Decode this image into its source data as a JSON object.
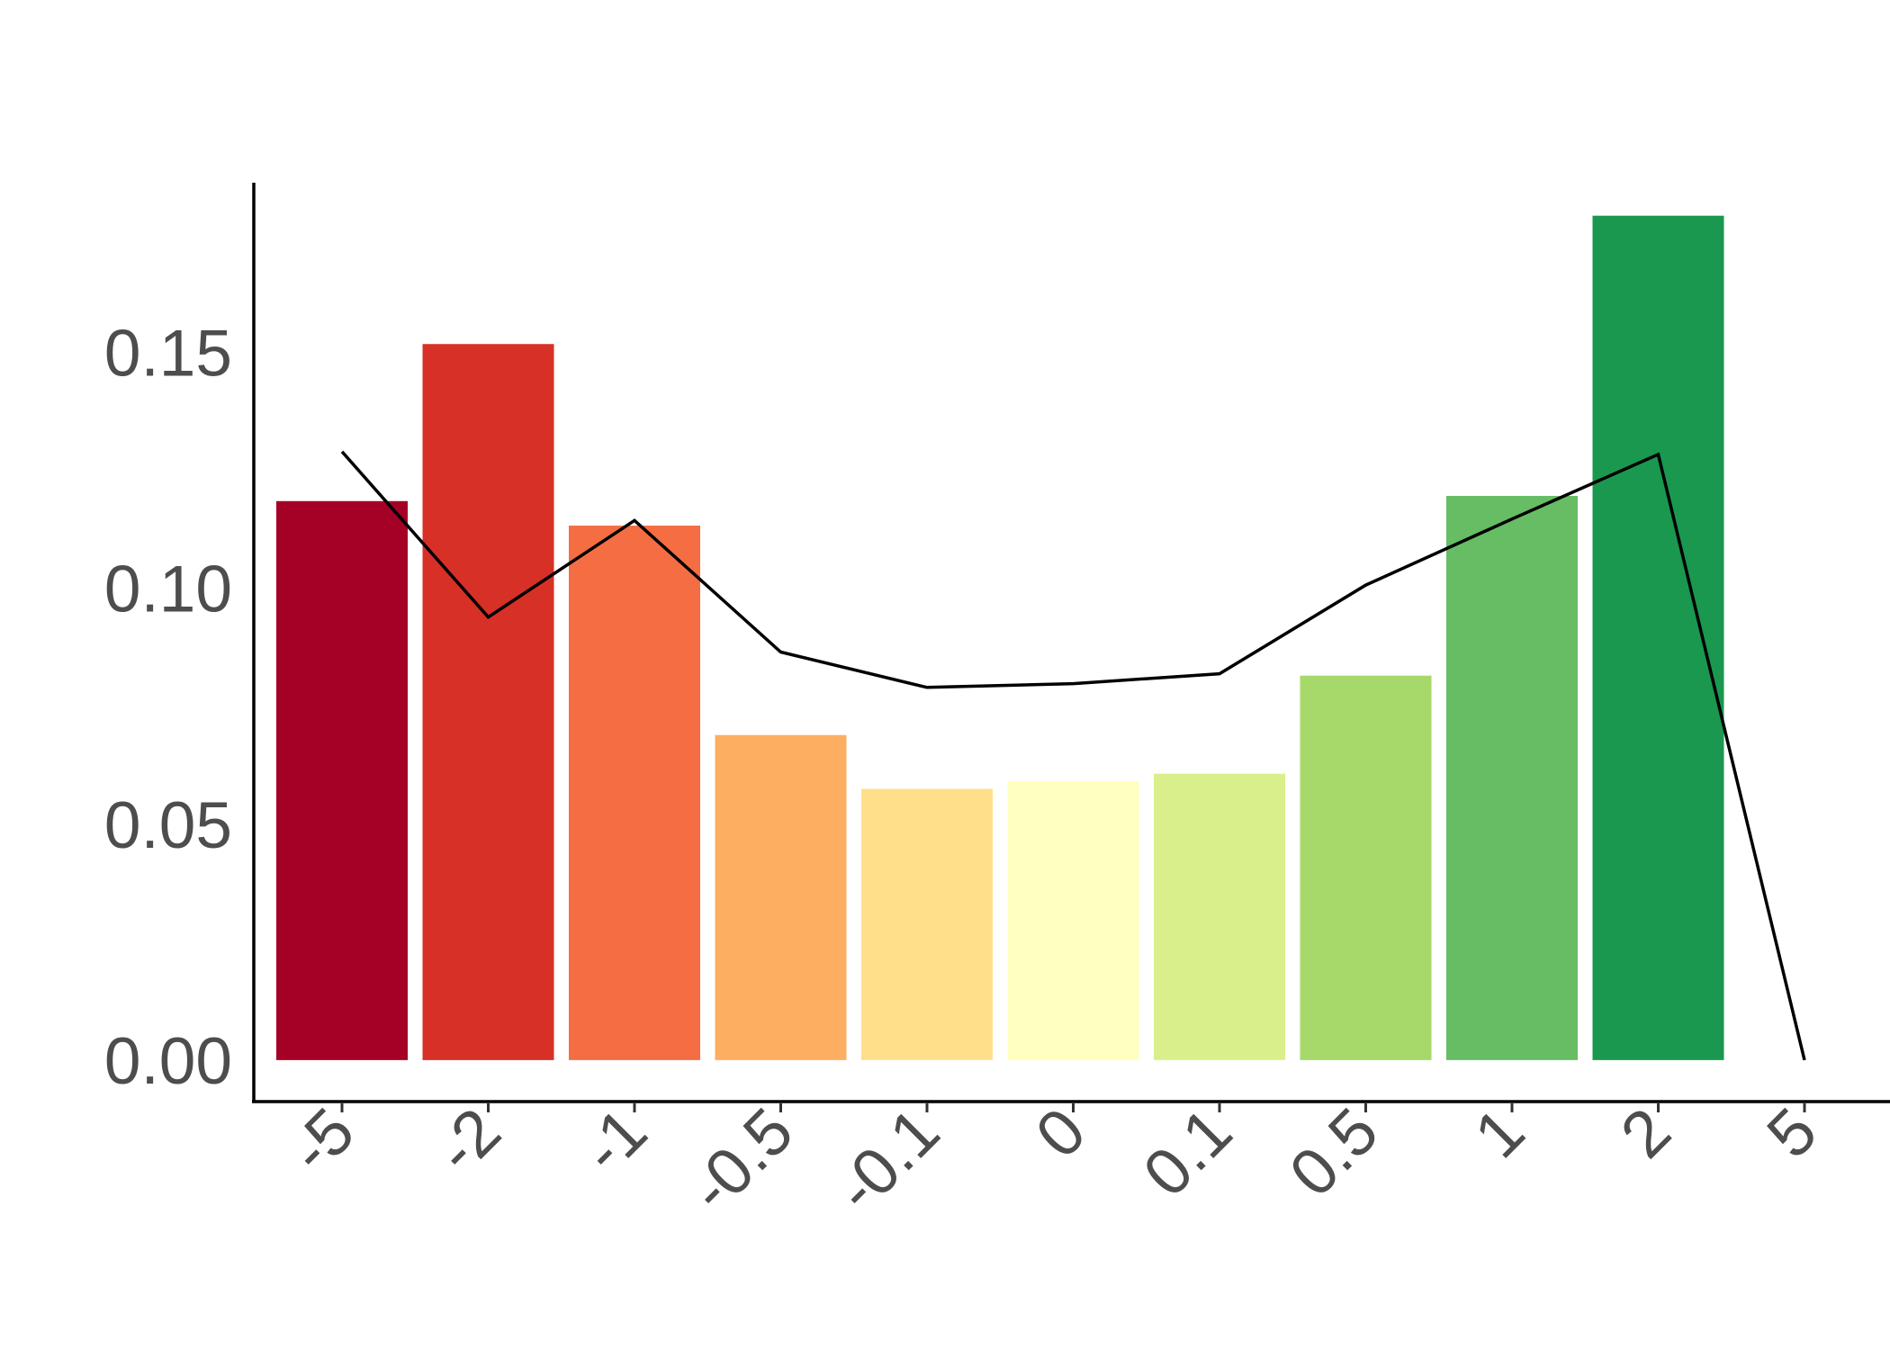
{
  "chart_data": {
    "type": "bar",
    "title": "",
    "xlabel": "",
    "ylabel": "",
    "x_ticks": [
      "-5",
      "-2",
      "-1",
      "-0.5",
      "-0.1",
      "0",
      "0.1",
      "0.5",
      "1",
      "2",
      "5"
    ],
    "y_ticks": [
      "0.00",
      "0.05",
      "0.10",
      "0.15"
    ],
    "ylim": [
      -0.0088,
      0.186
    ],
    "bars": {
      "categories": [
        "-5",
        "-2",
        "-1",
        "-0.5",
        "-0.1",
        "0",
        "0.1",
        "0.5",
        "1",
        "2"
      ],
      "values": [
        0.1185,
        0.1518,
        0.1133,
        0.0689,
        0.0575,
        0.0591,
        0.0607,
        0.0815,
        0.1196,
        0.179
      ],
      "colors": [
        "#a50026",
        "#d73027",
        "#f46d43",
        "#fdae61",
        "#fee08b",
        "#ffffbf",
        "#d9ef8b",
        "#a6d96a",
        "#66bd63",
        "#1a9850"
      ]
    },
    "line": {
      "x": [
        "-5",
        "-2",
        "-1",
        "-0.5",
        "-0.1",
        "0",
        "0.1",
        "0.5",
        "1",
        "2",
        "5"
      ],
      "values": [
        0.129,
        0.0939,
        0.1144,
        0.0865,
        0.079,
        0.0798,
        0.0819,
        0.1007,
        0.1147,
        0.1284,
        0.0
      ],
      "color": "#000000"
    },
    "grid": false,
    "legend": "none"
  }
}
